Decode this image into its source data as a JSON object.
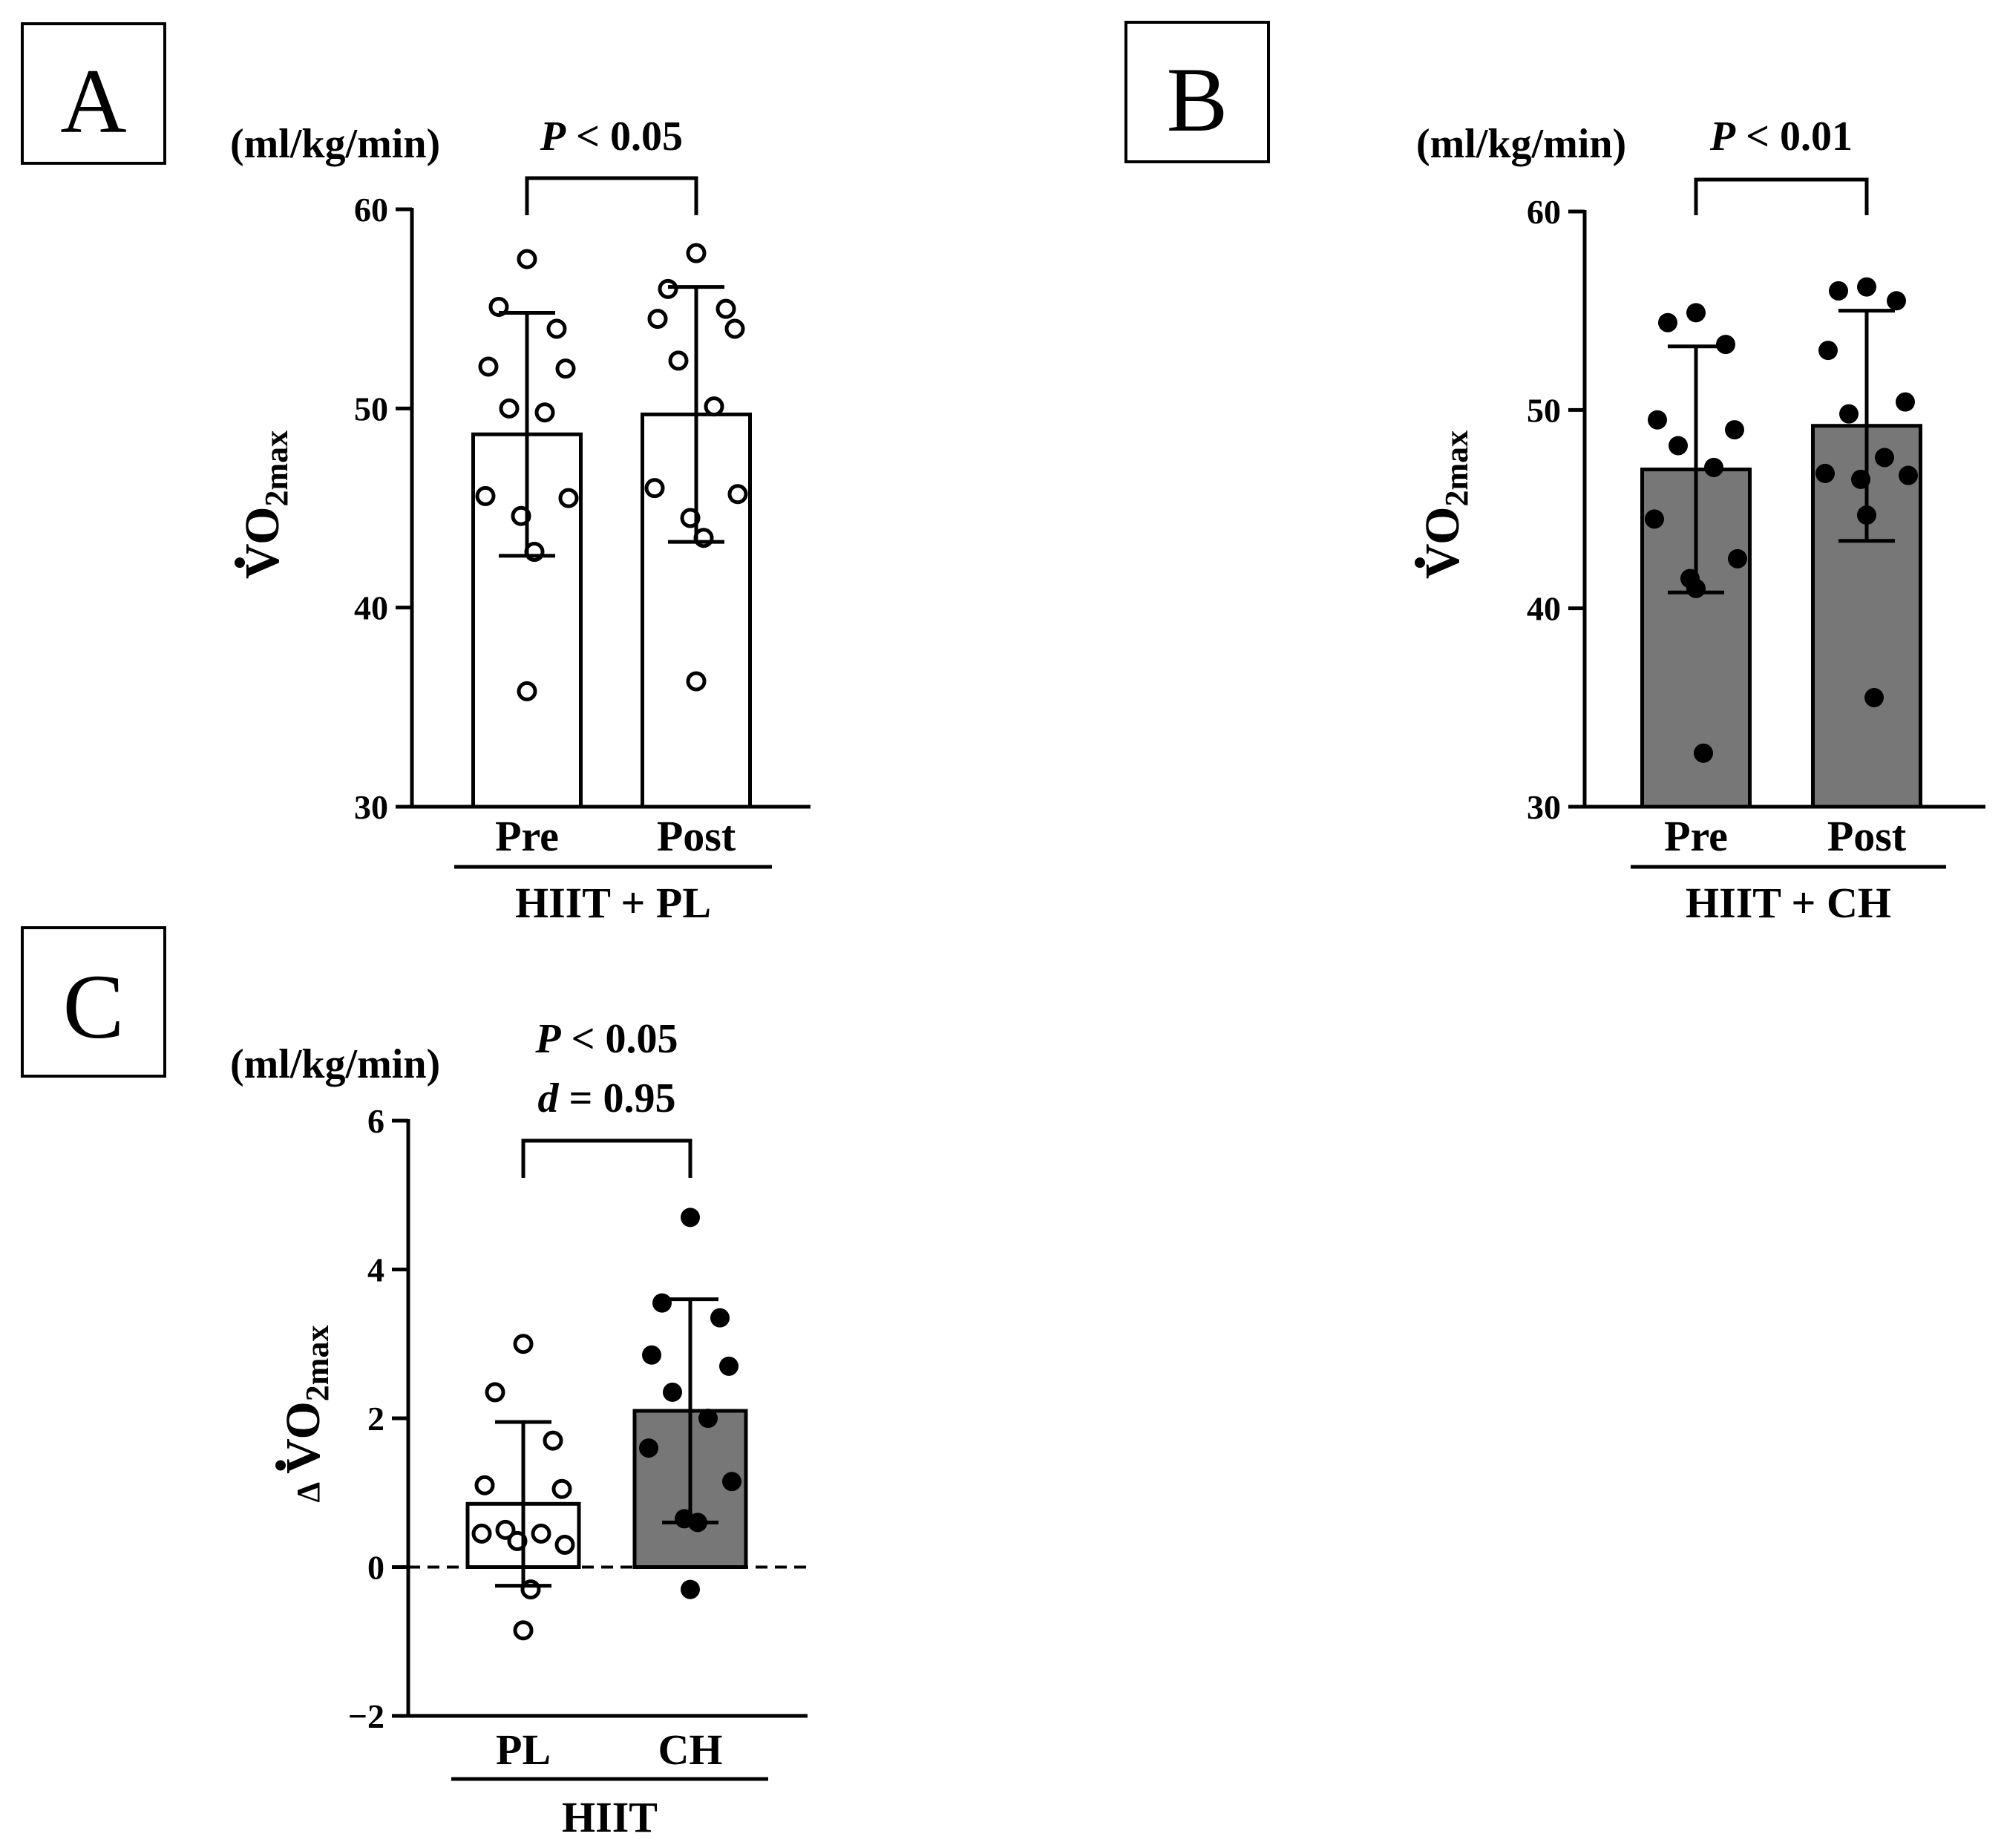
{
  "figure": {
    "panels": [
      "A",
      "B",
      "C"
    ]
  },
  "chart_data": [
    {
      "panel": "A",
      "type": "bar",
      "categories": [
        "Pre",
        "Post"
      ],
      "group_label": "HIIT + PL",
      "unit": "(ml/kg/min)",
      "ylabel": {
        "main": "VO",
        "sub": "2max"
      },
      "ylim": [
        30,
        60
      ],
      "yticks": [
        30,
        40,
        50,
        60
      ],
      "fill": "#ffffff",
      "point_style": "open",
      "means": [
        48.7,
        49.7
      ],
      "sd": [
        6.1,
        6.4
      ],
      "points": [
        [
          57.5,
          55.1,
          54.0,
          52.1,
          52.0,
          50.0,
          49.8,
          45.6,
          45.5,
          44.6,
          42.8,
          35.8
        ],
        [
          57.8,
          56.0,
          55.0,
          54.5,
          54.0,
          52.4,
          50.1,
          46.0,
          45.7,
          44.5,
          43.5,
          36.3
        ]
      ],
      "comparison": {
        "from": 0,
        "to": 1,
        "p_prefix": "P",
        "p_text": " < 0.05",
        "d_prefix": "",
        "d_text": ""
      }
    },
    {
      "panel": "B",
      "type": "bar",
      "categories": [
        "Pre",
        "Post"
      ],
      "group_label": "HIIT + CH",
      "unit": "(ml/kg/min)",
      "ylabel": {
        "main": "VO",
        "sub": "2max"
      },
      "ylim": [
        30,
        60
      ],
      "yticks": [
        30,
        40,
        50,
        60
      ],
      "fill": "#777777",
      "point_style": "filled",
      "means": [
        47.0,
        49.2
      ],
      "sd": [
        6.2,
        5.8
      ],
      "points": [
        [
          54.9,
          54.4,
          53.3,
          49.5,
          49.0,
          48.2,
          47.1,
          44.5,
          42.5,
          41.5,
          32.7,
          41.0
        ],
        [
          56.2,
          56.0,
          55.5,
          53.0,
          50.4,
          49.8,
          47.6,
          46.8,
          46.7,
          46.5,
          35.5,
          44.7
        ]
      ],
      "comparison": {
        "from": 0,
        "to": 1,
        "p_prefix": "P",
        "p_text": " < 0.01",
        "d_prefix": "",
        "d_text": ""
      }
    },
    {
      "panel": "C",
      "type": "bar",
      "categories": [
        "PL",
        "CH"
      ],
      "group_label": "HIIT",
      "unit": "(ml/kg/min)",
      "ylabel": {
        "prefix": "Δ",
        "main": "VO",
        "sub": "2max"
      },
      "ylim": [
        -2,
        6
      ],
      "yticks": [
        -2,
        0,
        2,
        4,
        6
      ],
      "ytick_labels": [
        "−2",
        "0",
        "2",
        "4",
        "6"
      ],
      "zero_line": true,
      "fills": [
        "#ffffff",
        "#777777"
      ],
      "point_styles": [
        "open",
        "filled"
      ],
      "means": [
        0.85,
        2.1
      ],
      "sd": [
        1.1,
        1.5
      ],
      "points": [
        [
          3.0,
          2.35,
          1.7,
          1.1,
          1.05,
          0.5,
          0.45,
          0.45,
          0.3,
          0.35,
          -0.3,
          -0.85
        ],
        [
          4.7,
          3.55,
          3.35,
          2.85,
          2.7,
          2.35,
          2.0,
          1.6,
          1.15,
          0.65,
          0.6,
          -0.3
        ]
      ],
      "comparison": {
        "from": 0,
        "to": 1,
        "p_prefix": "P",
        "p_text": " < 0.05",
        "d_prefix": "d",
        "d_text": " = 0.95"
      }
    }
  ]
}
